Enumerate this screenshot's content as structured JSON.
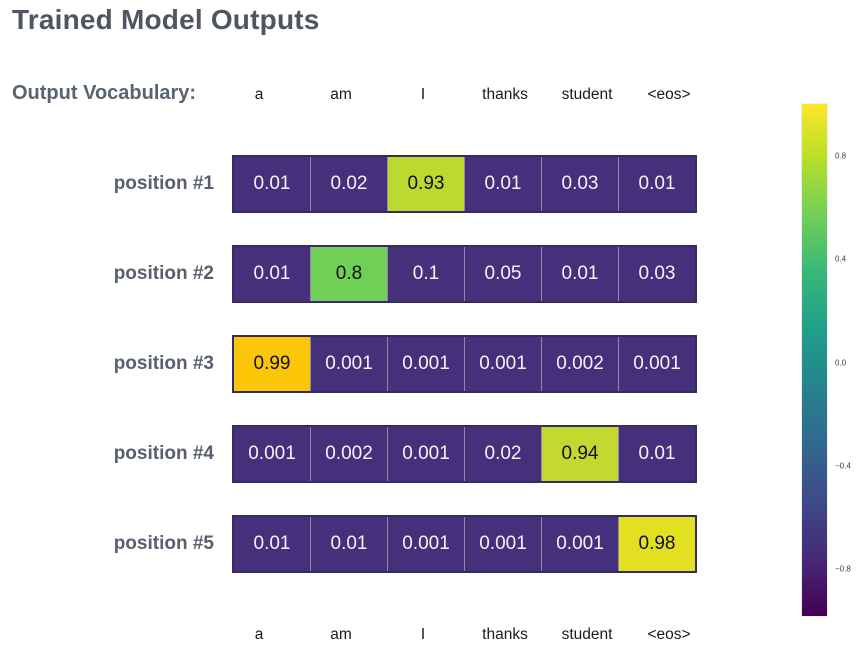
{
  "title": "Trained Model Outputs",
  "vocab_row": {
    "label": "Output Vocabulary:"
  },
  "chart_data": {
    "type": "heatmap",
    "title": "Trained Model Outputs",
    "columns": [
      "a",
      "am",
      "I",
      "thanks",
      "student",
      "<eos>"
    ],
    "rows": [
      {
        "label": "position #1",
        "values": [
          0.01,
          0.02,
          0.93,
          0.01,
          0.03,
          0.01
        ]
      },
      {
        "label": "position #2",
        "values": [
          0.01,
          0.8,
          0.1,
          0.05,
          0.01,
          0.03
        ]
      },
      {
        "label": "position #3",
        "values": [
          0.99,
          0.001,
          0.001,
          0.001,
          0.002,
          0.001
        ]
      },
      {
        "label": "position #4",
        "values": [
          0.001,
          0.002,
          0.001,
          0.02,
          0.94,
          0.01
        ]
      },
      {
        "label": "position #5",
        "values": [
          0.01,
          0.01,
          0.001,
          0.001,
          0.001,
          0.98
        ]
      }
    ],
    "display_values": [
      [
        "0.01",
        "0.02",
        "0.93",
        "0.01",
        "0.03",
        "0.01"
      ],
      [
        "0.01",
        "0.8",
        "0.1",
        "0.05",
        "0.01",
        "0.03"
      ],
      [
        "0.99",
        "0.001",
        "0.001",
        "0.001",
        "0.002",
        "0.001"
      ],
      [
        "0.001",
        "0.002",
        "0.001",
        "0.02",
        "0.94",
        "0.01"
      ],
      [
        "0.01",
        "0.01",
        "0.001",
        "0.001",
        "0.001",
        "0.98"
      ]
    ],
    "cell_colors": [
      [
        "#46307c",
        "#46307c",
        "#bdd92f",
        "#46307c",
        "#46307c",
        "#46307c"
      ],
      [
        "#46307c",
        "#70cf57",
        "#46307c",
        "#46307c",
        "#46307c",
        "#46307c"
      ],
      [
        "#fcc608",
        "#46307c",
        "#46307c",
        "#46307c",
        "#46307c",
        "#46307c"
      ],
      [
        "#46307c",
        "#46307c",
        "#46307c",
        "#46307c",
        "#c3d831",
        "#46307c"
      ],
      [
        "#46307c",
        "#46307c",
        "#46307c",
        "#46307c",
        "#46307c",
        "#e2e020"
      ]
    ],
    "colorbar": {
      "ticks": [
        "0.8",
        "0.4",
        "0.0",
        "−0.4",
        "−0.8"
      ],
      "range": [
        -1,
        1
      ],
      "colorscale": "viridis",
      "position": "right"
    },
    "grid": false,
    "legend_position": "none"
  },
  "colors": {
    "base_cell": "#46307c",
    "cell_text_light": "#f4f2f8",
    "cell_text_dark": "#111111",
    "label_gray": "#57606c",
    "title_gray": "#4e5761",
    "colorbar_top": "#fde725",
    "colorbar_bottom": "#440154"
  }
}
